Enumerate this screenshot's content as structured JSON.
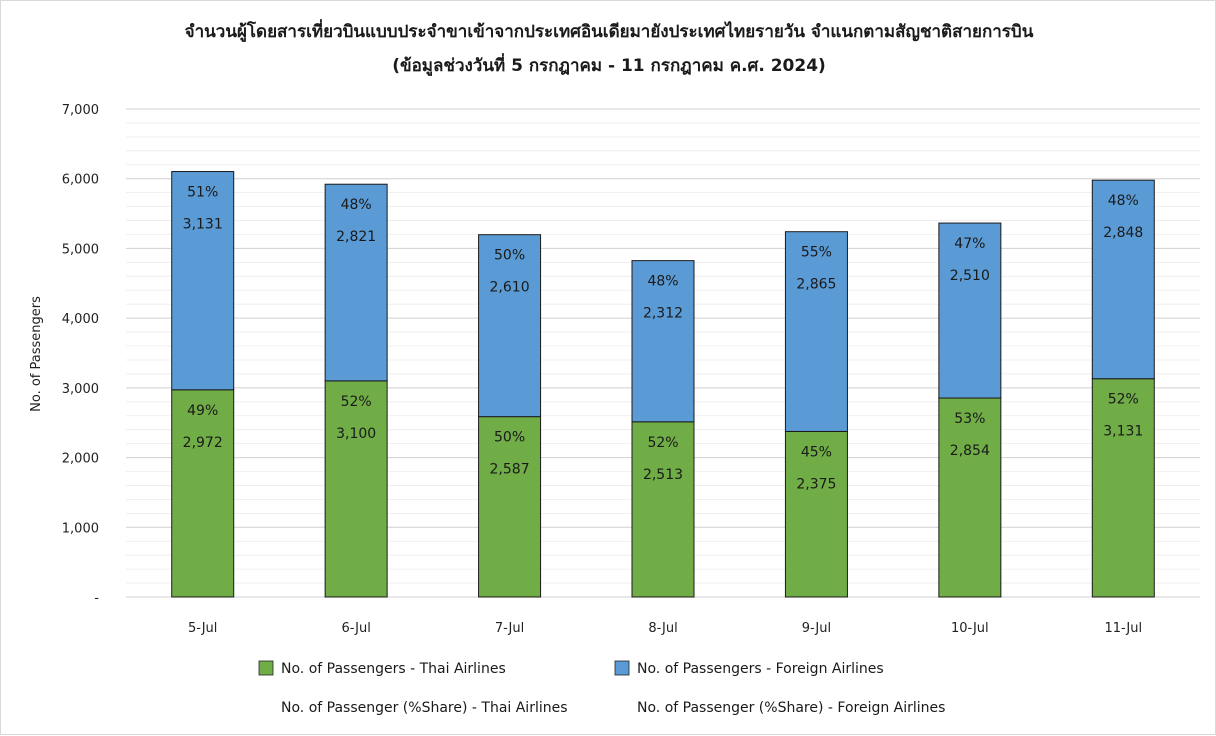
{
  "chart_data": {
    "type": "bar",
    "stacked": true,
    "title": "จำนวนผู้โดยสารเที่ยวบินแบบประจำขาเข้าจากประเทศอินเดียมายังประเทศไทยรายวัน  จำแนกตามสัญชาติสายการบิน",
    "subtitle": "(ข้อมูลช่วงวันที่ 5 กรกฎาคม - 11 กรกฎาคม ค.ศ. 2024)",
    "xlabel": "",
    "ylabel": "No. of Passengers",
    "ylim": [
      0,
      7000
    ],
    "yticks": [
      0,
      1000,
      2000,
      3000,
      4000,
      5000,
      6000,
      7000
    ],
    "ytick_labels": [
      "-",
      "1,000",
      "2,000",
      "3,000",
      "4,000",
      "5,000",
      "6,000",
      "7,000"
    ],
    "categories": [
      "5-Jul",
      "6-Jul",
      "7-Jul",
      "8-Jul",
      "9-Jul",
      "10-Jul",
      "11-Jul"
    ],
    "grid": true,
    "legend_position": "bottom",
    "series": [
      {
        "name": "No. of Passengers - Thai Airlines",
        "color": "#70ad47",
        "values": [
          2972,
          3100,
          2587,
          2513,
          2375,
          2854,
          3131
        ],
        "value_labels": [
          "2,972",
          "3,100",
          "2,587",
          "2,513",
          "2,375",
          "2,854",
          "3,131"
        ],
        "share_labels": [
          "49%",
          "52%",
          "50%",
          "52%",
          "45%",
          "53%",
          "52%"
        ]
      },
      {
        "name": "No. of Passengers - Foreign Airlines",
        "color": "#5b9bd5",
        "values": [
          3131,
          2821,
          2610,
          2312,
          2865,
          2510,
          2848
        ],
        "value_labels": [
          "3,131",
          "2,821",
          "2,610",
          "2,312",
          "2,865",
          "2,510",
          "2,848"
        ],
        "share_labels": [
          "51%",
          "48%",
          "50%",
          "48%",
          "55%",
          "47%",
          "48%"
        ]
      }
    ],
    "share_legend": [
      "No. of Passenger (%Share) - Thai Airlines",
      "No. of Passenger (%Share) - Foreign Airlines"
    ]
  }
}
